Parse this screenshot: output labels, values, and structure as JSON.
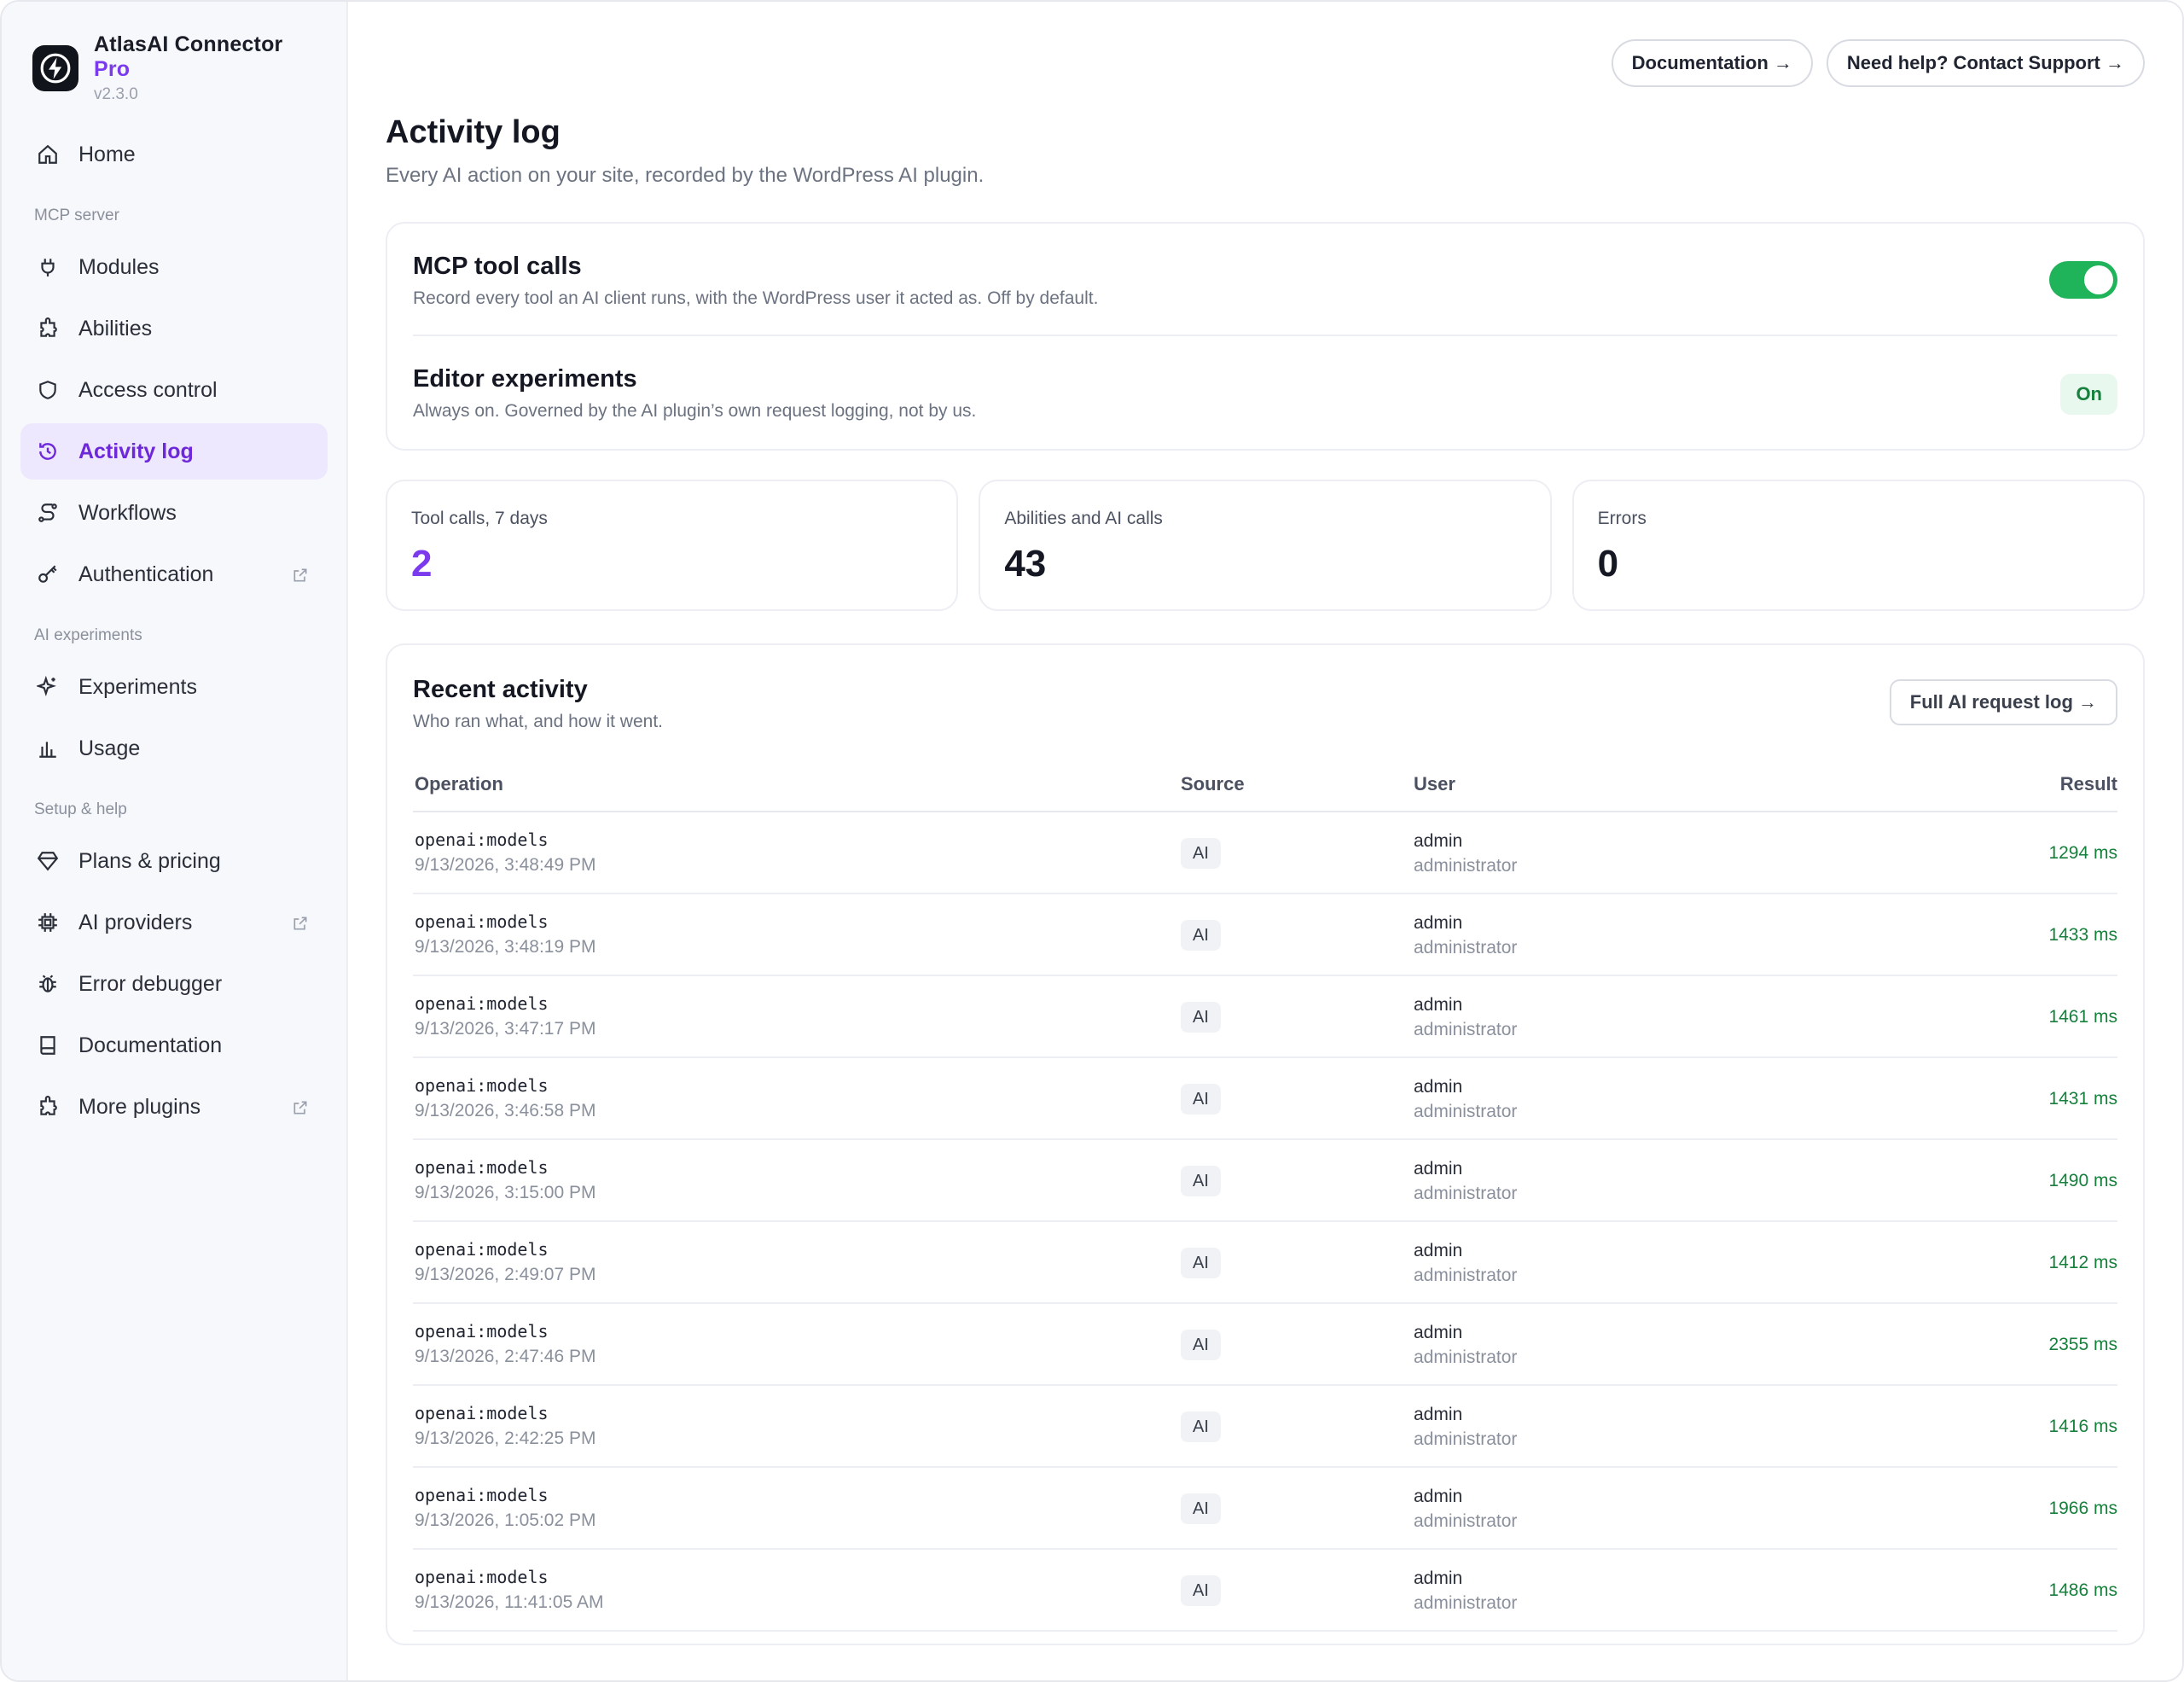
{
  "brand": {
    "name": "AtlasAI Connector",
    "pro": "Pro",
    "version": "v2.3.0"
  },
  "sidebar": {
    "home": "Home",
    "sections": {
      "mcp": "MCP server",
      "ai": "AI experiments",
      "setup": "Setup & help"
    },
    "mcp_items": [
      {
        "label": "Modules",
        "icon": "plug-icon"
      },
      {
        "label": "Abilities",
        "icon": "puzzle-icon"
      },
      {
        "label": "Access control",
        "icon": "shield-icon"
      },
      {
        "label": "Activity log",
        "icon": "history-icon",
        "active": true
      },
      {
        "label": "Workflows",
        "icon": "route-icon"
      },
      {
        "label": "Authentication",
        "icon": "key-icon",
        "external": true
      }
    ],
    "ai_items": [
      {
        "label": "Experiments",
        "icon": "sparkles-icon"
      },
      {
        "label": "Usage",
        "icon": "bar-chart-icon"
      }
    ],
    "setup_items": [
      {
        "label": "Plans & pricing",
        "icon": "gem-icon"
      },
      {
        "label": "AI providers",
        "icon": "chip-icon",
        "external": true
      },
      {
        "label": "Error debugger",
        "icon": "bug-icon"
      },
      {
        "label": "Documentation",
        "icon": "book-icon"
      },
      {
        "label": "More plugins",
        "icon": "puzzle-icon",
        "external": true
      }
    ]
  },
  "header": {
    "documentation": "Documentation →",
    "support": "Need help? Contact Support →"
  },
  "page": {
    "title": "Activity log",
    "subtitle": "Every AI action on your site, recorded by the WordPress AI plugin."
  },
  "settings": {
    "mcp": {
      "title": "MCP tool calls",
      "desc": "Record every tool an AI client runs, with the WordPress user it acted as. Off by default.",
      "enabled": true
    },
    "editor": {
      "title": "Editor experiments",
      "desc": "Always on. Governed by the AI plugin’s own request logging, not by us.",
      "badge": "On"
    }
  },
  "stats": [
    {
      "label": "Tool calls, 7 days",
      "value": "2"
    },
    {
      "label": "Abilities and AI calls",
      "value": "43"
    },
    {
      "label": "Errors",
      "value": "0"
    }
  ],
  "activity": {
    "title": "Recent activity",
    "subtitle": "Who ran what, and how it went.",
    "full_log": "Full AI request log →",
    "columns": {
      "operation": "Operation",
      "source": "Source",
      "user": "User",
      "result": "Result"
    },
    "rows": [
      {
        "op": "openai:models",
        "time": "9/13/2026, 3:48:49 PM",
        "source": "AI",
        "user": "admin",
        "role": "administrator",
        "result": "1294 ms"
      },
      {
        "op": "openai:models",
        "time": "9/13/2026, 3:48:19 PM",
        "source": "AI",
        "user": "admin",
        "role": "administrator",
        "result": "1433 ms"
      },
      {
        "op": "openai:models",
        "time": "9/13/2026, 3:47:17 PM",
        "source": "AI",
        "user": "admin",
        "role": "administrator",
        "result": "1461 ms"
      },
      {
        "op": "openai:models",
        "time": "9/13/2026, 3:46:58 PM",
        "source": "AI",
        "user": "admin",
        "role": "administrator",
        "result": "1431 ms"
      },
      {
        "op": "openai:models",
        "time": "9/13/2026, 3:15:00 PM",
        "source": "AI",
        "user": "admin",
        "role": "administrator",
        "result": "1490 ms"
      },
      {
        "op": "openai:models",
        "time": "9/13/2026, 2:49:07 PM",
        "source": "AI",
        "user": "admin",
        "role": "administrator",
        "result": "1412 ms"
      },
      {
        "op": "openai:models",
        "time": "9/13/2026, 2:47:46 PM",
        "source": "AI",
        "user": "admin",
        "role": "administrator",
        "result": "2355 ms"
      },
      {
        "op": "openai:models",
        "time": "9/13/2026, 2:42:25 PM",
        "source": "AI",
        "user": "admin",
        "role": "administrator",
        "result": "1416 ms"
      },
      {
        "op": "openai:models",
        "time": "9/13/2026, 1:05:02 PM",
        "source": "AI",
        "user": "admin",
        "role": "administrator",
        "result": "1966 ms"
      },
      {
        "op": "openai:models",
        "time": "9/13/2026, 11:41:05 AM",
        "source": "AI",
        "user": "admin",
        "role": "administrator",
        "result": "1486 ms"
      }
    ]
  },
  "colors": {
    "accent": "#7c3aed",
    "success": "#1fb35a",
    "result_text": "#16803c"
  }
}
